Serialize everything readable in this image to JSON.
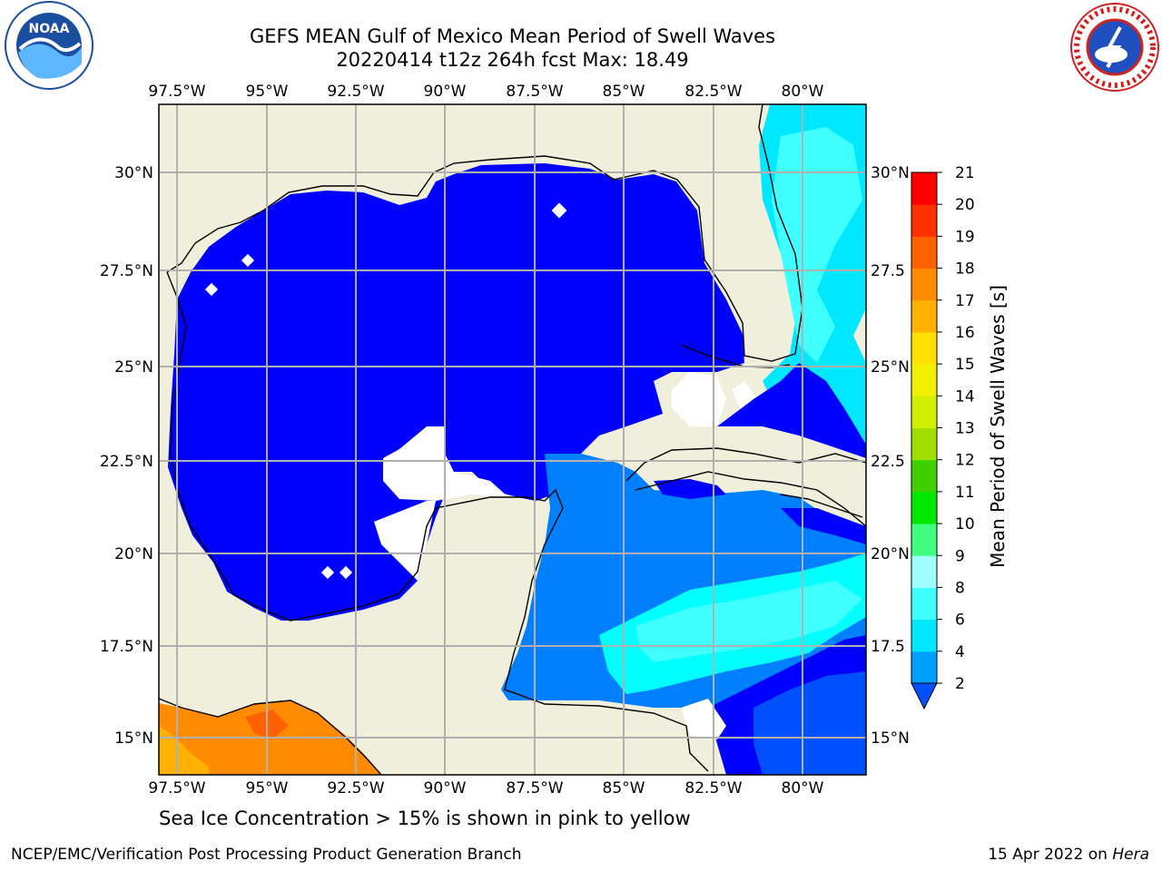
{
  "header": {
    "title_line1": "GEFS MEAN Gulf of Mexico Mean Period of Swell Waves",
    "title_line2": "20220414 t12z 264h fcst   Max: 18.49"
  },
  "logos": {
    "left": "noaa-logo",
    "right": "nws-logo"
  },
  "map": {
    "lon_ticks": [
      "97.5°W",
      "95°W",
      "92.5°W",
      "90°W",
      "87.5°W",
      "85°W",
      "82.5°W",
      "80°W"
    ],
    "lat_ticks": [
      "30°N",
      "27.5°N",
      "25°N",
      "22.5°N",
      "20°N",
      "17.5°N",
      "15°N"
    ],
    "lat_ticks_right": [
      "30°N",
      "27.5",
      "25°N",
      "22.5",
      "20°N",
      "17.5",
      "15°N"
    ],
    "colors": {
      "land": "#efefdc",
      "ocean_2_4": "#0000ff",
      "ocean_4_6": "#0080ff",
      "ocean_6_8": "#00ffff",
      "ocean_8_9": "#40ffff",
      "warm": "#ff8c00",
      "grid": "#b0b0b0"
    }
  },
  "colorbar": {
    "label": "Mean Period of Swell Waves [s]",
    "levels": [
      "2",
      "4",
      "6",
      "8",
      "9",
      "10",
      "11",
      "12",
      "13",
      "14",
      "15",
      "16",
      "17",
      "18",
      "19",
      "20",
      "21"
    ],
    "colors": [
      "#0050ff",
      "#00a0ff",
      "#00e8ff",
      "#40ffff",
      "#a0ffff",
      "#40ff80",
      "#00e800",
      "#40d000",
      "#a0e000",
      "#d0f000",
      "#f0f000",
      "#ffe000",
      "#ffb000",
      "#ff8c00",
      "#ff6000",
      "#ff3000",
      "#ff0000"
    ]
  },
  "footer": {
    "note": "Sea Ice Concentration > 15% is shown in pink to yellow",
    "left": "NCEP/EMC/Verification Post Processing Product Generation Branch",
    "right_date": "15 Apr 2022 on ",
    "right_host": "Hera"
  }
}
